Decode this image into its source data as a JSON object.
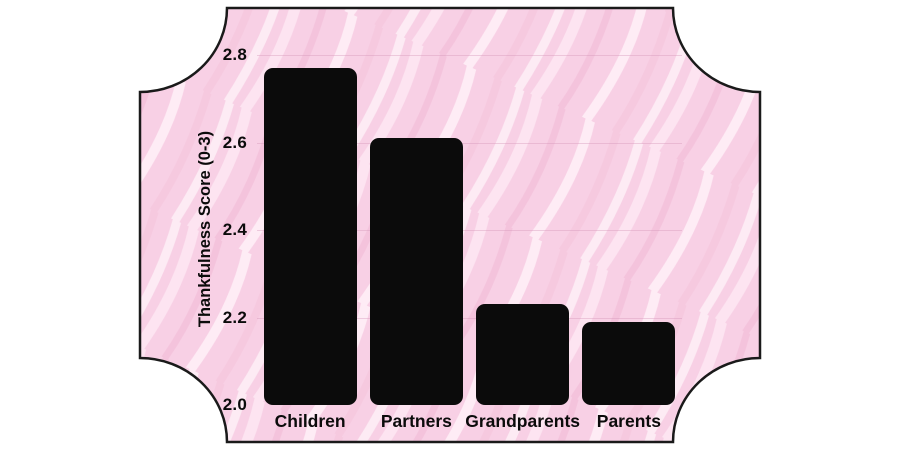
{
  "frame": {
    "fill_color": "#f8d0e5",
    "border_color": "#1a1a1a",
    "background_color": "#ffffff"
  },
  "chart_data": {
    "type": "bar",
    "categories": [
      "Children",
      "Partners",
      "Grandparents",
      "Parents"
    ],
    "values": [
      2.77,
      2.61,
      2.23,
      2.19
    ],
    "title": "",
    "xlabel": "",
    "ylabel": "Thankfulness Score (0-3)",
    "ylim": [
      2.0,
      2.8
    ],
    "yticks": [
      2.0,
      2.2,
      2.4,
      2.6,
      2.8
    ],
    "tick_label_format": "one-decimal",
    "bar_color": "#0b0b0b",
    "gridline_color": "#d596b8",
    "text_color": "#0b0b0b",
    "grid": true,
    "legend": false
  }
}
